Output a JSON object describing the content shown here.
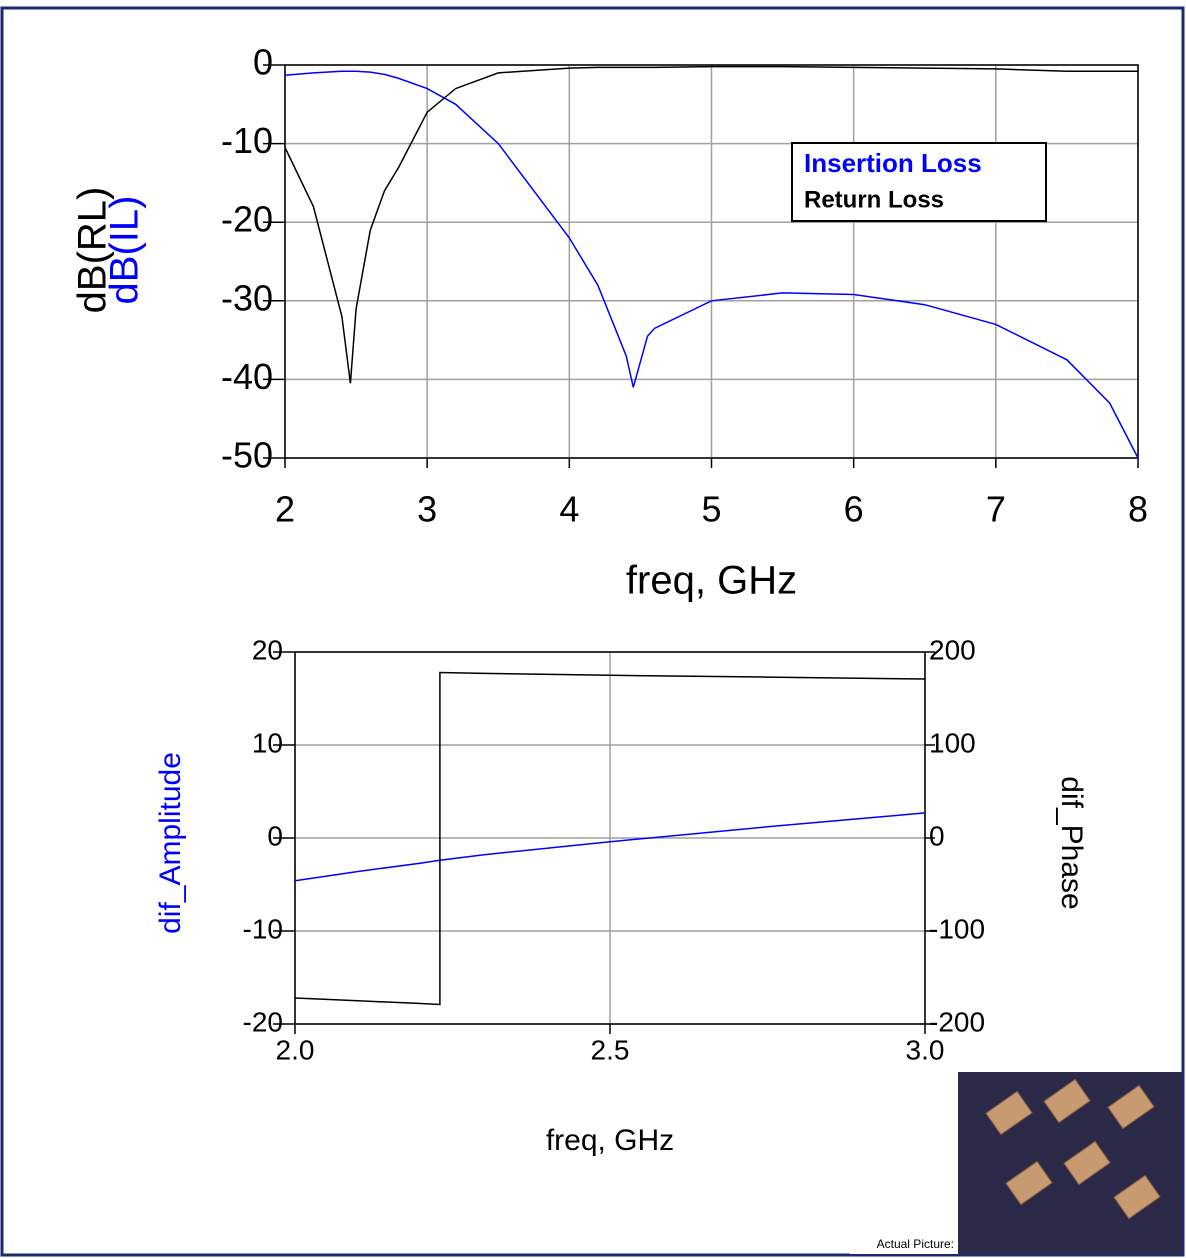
{
  "chart_data": [
    {
      "type": "line",
      "xlabel": "freq, GHz",
      "ylabel": [
        "dB(RL)",
        "dB(IL)"
      ],
      "x": [
        2,
        2.2,
        2.4,
        2.46,
        2.5,
        2.6,
        2.7,
        2.8,
        3,
        3.2,
        3.5,
        4,
        4.2,
        4.4,
        4.45,
        4.55,
        4.6,
        5,
        5.5,
        6,
        6.5,
        7,
        7.5,
        7.8,
        8
      ],
      "series": [
        {
          "name": "Insertion Loss",
          "color": "#0000ff",
          "values": [
            -1.3,
            -1,
            -0.8,
            -0.8,
            -0.8,
            -0.9,
            -1.2,
            -1.7,
            -3,
            -5,
            -10,
            -22,
            -28,
            -37,
            -41,
            -34.5,
            -33.5,
            -30,
            -29,
            -29.2,
            -30.5,
            -33,
            -37.5,
            -43,
            -50
          ]
        },
        {
          "name": "Return Loss",
          "color": "#000000",
          "values": [
            -10.5,
            -18,
            -32,
            -40.5,
            -31,
            -21,
            -16,
            -13,
            -6,
            -3,
            -1,
            -0.4,
            -0.3,
            -0.3,
            -0.3,
            -0.3,
            -0.3,
            -0.2,
            -0.2,
            -0.3,
            -0.4,
            -0.5,
            -0.8,
            -0.8,
            -0.8
          ]
        }
      ],
      "xlim": [
        2,
        8
      ],
      "xticks": [
        2,
        3,
        4,
        5,
        6,
        7,
        8
      ],
      "ylim": [
        -50,
        0
      ],
      "yticks": [
        0,
        -10,
        -20,
        -30,
        -40,
        -50
      ],
      "grid": true,
      "legend": "upper right"
    },
    {
      "type": "line",
      "xlabel": "freq, GHz",
      "ylabel": "dif_Amplitude",
      "y2label": "dif_Phase",
      "x": [
        2.0,
        2.1,
        2.2,
        2.23,
        2.23,
        2.3,
        2.5,
        2.75,
        3.0
      ],
      "series": [
        {
          "color": "#0000ff",
          "values": [
            -4.6,
            -3.6,
            -2.7,
            -2.4,
            -2.4,
            -1.8,
            -0.4,
            1.2,
            2.7
          ]
        },
        {
          "color": "#000000",
          "axis": "y2",
          "values": [
            -172,
            -175,
            -178,
            -179,
            178,
            177,
            175,
            173,
            171
          ]
        }
      ],
      "xlim": [
        2,
        3
      ],
      "xticks": [
        {
          "value": 2,
          "label": "2.0"
        },
        {
          "value": 2.5,
          "label": "2.5"
        },
        {
          "value": 3,
          "label": "3.0"
        }
      ],
      "ylim": [
        -20,
        20
      ],
      "yticks": [
        20,
        10,
        0,
        -10,
        -20
      ],
      "y2lim": [
        -200,
        200
      ],
      "y2ticks": [
        200,
        100,
        0,
        -100,
        -200
      ],
      "grid": true
    }
  ],
  "photo": {
    "caption": "Actual Picture:"
  }
}
